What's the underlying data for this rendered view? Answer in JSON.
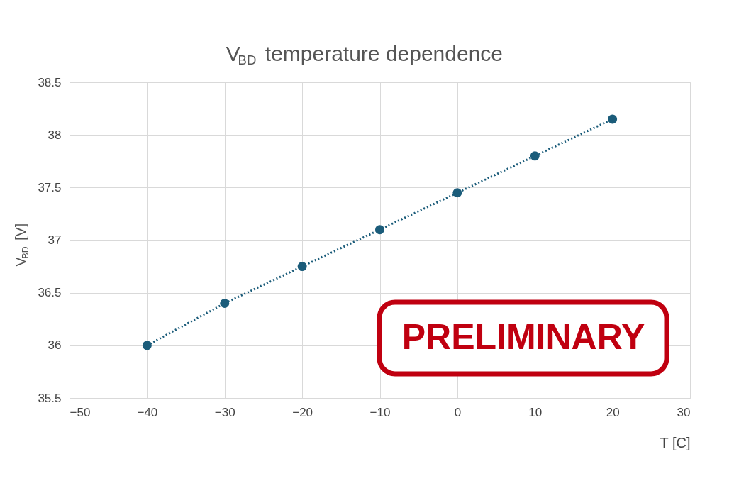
{
  "chart_data": {
    "type": "line",
    "title": "V$_{BD}$ temperature dependence",
    "xlabel": "T [C]",
    "ylabel": "V$_{BD}$ [V]",
    "x": [
      -40,
      -30,
      -20,
      -10,
      0,
      10,
      20
    ],
    "series": [
      {
        "color": "#1b5c7a",
        "values": [
          36.0,
          36.4,
          36.75,
          37.1,
          37.45,
          37.8,
          38.15
        ],
        "errors": [
          0.03,
          0.03,
          0.03,
          0.03,
          0.03,
          0.03,
          0.03
        ]
      }
    ],
    "marker": "circle",
    "line_style": "dotted",
    "grid": true,
    "xlim": [
      -50,
      30
    ],
    "xticks": [
      -50,
      -40,
      -30,
      -20,
      -10,
      0,
      10,
      20,
      30
    ],
    "ylim": [
      35.5,
      38.5
    ],
    "yticks": [
      35.5,
      {
        "value": 36,
        "label": "36"
      },
      36.5,
      {
        "value": 37,
        "label": "37"
      },
      37.5,
      {
        "value": 38,
        "label": "38"
      },
      38.5
    ],
    "annotations": [
      "PRELIMINARY"
    ]
  }
}
